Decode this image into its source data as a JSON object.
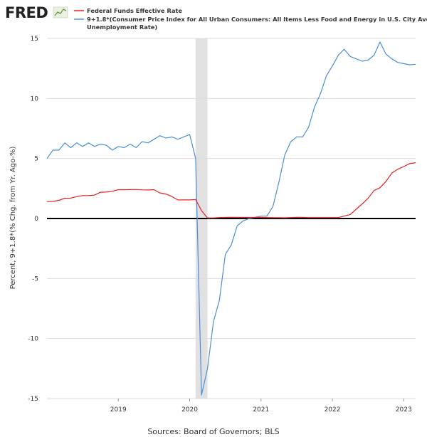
{
  "logo_text": "FRED",
  "chart_data": {
    "type": "line",
    "ylabel": "Percent, 9+1.8*(% Chg. from Yr. Ago-%)",
    "source": "Sources: Board of Governors; BLS",
    "ylim": [
      -15,
      15
    ],
    "yticks": [
      15,
      10,
      5,
      0,
      -5,
      -10,
      -15
    ],
    "ytick_labels": [
      "15",
      "10",
      "5",
      "0",
      "-5",
      "-10",
      "-15"
    ],
    "xlim": [
      "2018-01",
      "2023-03"
    ],
    "xticks": [
      "2019-01",
      "2020-01",
      "2021-01",
      "2022-01",
      "2023-01"
    ],
    "xtick_labels": [
      "2019",
      "2020",
      "2021",
      "2022",
      "2023"
    ],
    "recession": [
      "2020-02",
      "2020-04"
    ],
    "grid": "horizontal",
    "zero_line": true,
    "legend_position": "top-left",
    "x": [
      "2018-01",
      "2018-02",
      "2018-03",
      "2018-04",
      "2018-05",
      "2018-06",
      "2018-07",
      "2018-08",
      "2018-09",
      "2018-10",
      "2018-11",
      "2018-12",
      "2019-01",
      "2019-02",
      "2019-03",
      "2019-04",
      "2019-05",
      "2019-06",
      "2019-07",
      "2019-08",
      "2019-09",
      "2019-10",
      "2019-11",
      "2019-12",
      "2020-01",
      "2020-02",
      "2020-03",
      "2020-04",
      "2020-05",
      "2020-06",
      "2020-07",
      "2020-08",
      "2020-09",
      "2020-10",
      "2020-11",
      "2020-12",
      "2021-01",
      "2021-02",
      "2021-03",
      "2021-04",
      "2021-05",
      "2021-06",
      "2021-07",
      "2021-08",
      "2021-09",
      "2021-10",
      "2021-11",
      "2021-12",
      "2022-01",
      "2022-02",
      "2022-03",
      "2022-04",
      "2022-05",
      "2022-06",
      "2022-07",
      "2022-08",
      "2022-09",
      "2022-10",
      "2022-11",
      "2022-12",
      "2023-01",
      "2023-02",
      "2023-03"
    ],
    "series": [
      {
        "name": "Federal Funds Effective Rate",
        "color": "#e8221f",
        "values": [
          1.41,
          1.42,
          1.51,
          1.69,
          1.7,
          1.82,
          1.91,
          1.91,
          1.95,
          2.19,
          2.2,
          2.27,
          2.4,
          2.4,
          2.41,
          2.42,
          2.39,
          2.38,
          2.4,
          2.13,
          2.04,
          1.83,
          1.55,
          1.55,
          1.55,
          1.58,
          0.65,
          0.05,
          0.05,
          0.08,
          0.09,
          0.1,
          0.09,
          0.09,
          0.09,
          0.09,
          0.09,
          0.08,
          0.07,
          0.07,
          0.06,
          0.08,
          0.1,
          0.09,
          0.08,
          0.08,
          0.08,
          0.08,
          0.08,
          0.08,
          0.2,
          0.33,
          0.77,
          1.21,
          1.68,
          2.33,
          2.56,
          3.08,
          3.78,
          4.1,
          4.33,
          4.57,
          4.65
        ]
      },
      {
        "name": "9+1.8*(Consumer Price Index for All Urban Consumers: All Items Less Food and Energy in U.S. City Average-Unemployment Rate)",
        "color": "#4a8fd6",
        "values": [
          5.0,
          5.7,
          5.7,
          6.3,
          5.9,
          6.3,
          6.0,
          6.3,
          6.0,
          6.2,
          6.1,
          5.7,
          6.0,
          5.9,
          6.2,
          5.9,
          6.4,
          6.3,
          6.6,
          6.9,
          6.7,
          6.8,
          6.6,
          6.8,
          7.0,
          5.0,
          -14.7,
          -12.5,
          -8.6,
          -6.8,
          -3.0,
          -2.2,
          -0.6,
          -0.2,
          0.0,
          0.1,
          0.2,
          0.2,
          1.0,
          3.0,
          5.3,
          6.4,
          6.8,
          6.8,
          7.6,
          9.3,
          10.4,
          11.9,
          12.7,
          13.6,
          14.1,
          13.5,
          13.3,
          13.1,
          13.2,
          13.6,
          14.7,
          13.7,
          13.3,
          13.0,
          12.9,
          12.8,
          12.85
        ]
      }
    ]
  }
}
